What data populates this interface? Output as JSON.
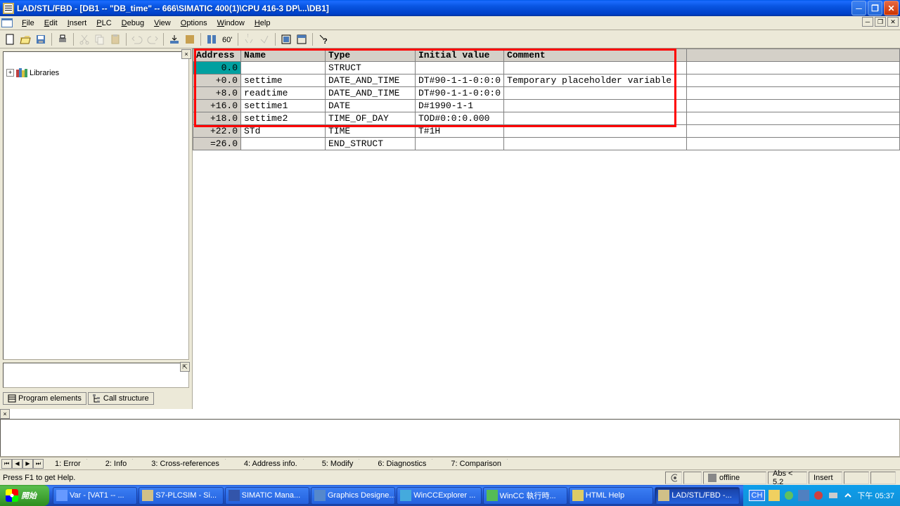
{
  "titlebar": {
    "text": "LAD/STL/FBD  - [DB1 -- \"DB_time\" -- 666\\SIMATIC 400(1)\\CPU 416-3 DP\\...\\DB1]"
  },
  "menu": {
    "items": [
      "File",
      "Edit",
      "Insert",
      "PLC",
      "Debug",
      "View",
      "Options",
      "Window",
      "Help"
    ]
  },
  "tree": {
    "root": "Libraries"
  },
  "pane_tabs": {
    "a": "Program elements",
    "b": "Call structure"
  },
  "table": {
    "headers": {
      "address": "Address",
      "name": "Name",
      "type": "Type",
      "initial": "Initial value",
      "comment": "Comment"
    },
    "rows": [
      {
        "addr": "0.0",
        "name": "",
        "type": "STRUCT",
        "init": "",
        "comment": "",
        "sel": true,
        "hl": true
      },
      {
        "addr": "+0.0",
        "name": "settime",
        "type": "DATE_AND_TIME",
        "init": "DT#90-1-1-0:0:0",
        "comment": "Temporary placeholder variable",
        "hl": true
      },
      {
        "addr": "+8.0",
        "name": "readtime",
        "type": "DATE_AND_TIME",
        "init": "DT#90-1-1-0:0:0",
        "comment": "",
        "hl": true
      },
      {
        "addr": "+16.0",
        "name": "settime1",
        "type": "DATE",
        "init": "D#1990-1-1",
        "comment": "",
        "hl": true
      },
      {
        "addr": "+18.0",
        "name": "settime2",
        "type": "TIME_OF_DAY",
        "init": "TOD#0:0:0.000",
        "comment": "",
        "hl": true
      },
      {
        "addr": "+22.0",
        "name": "STd",
        "type": "TIME",
        "init": "T#1H",
        "comment": "",
        "hl": false
      },
      {
        "addr": "=26.0",
        "name": "",
        "type": "END_STRUCT",
        "init": "",
        "comment": "",
        "hl": false
      }
    ]
  },
  "msg_tabs": [
    "1: Error",
    "2: Info",
    "3: Cross-references",
    "4: Address info.",
    "5: Modify",
    "6: Diagnostics",
    "7: Comparison"
  ],
  "status": {
    "help": "Press F1 to get Help.",
    "offline": "offline",
    "abs": "Abs < 5.2",
    "insert": "Insert"
  },
  "taskbar": {
    "start": "開始",
    "items": [
      {
        "label": "Var - [VAT1 -- ...",
        "color": "#6699ff"
      },
      {
        "label": "S7-PLCSIM - Si...",
        "color": "#d0c088"
      },
      {
        "label": "SIMATIC Mana...",
        "color": "#3355aa"
      },
      {
        "label": "Graphics Designe...",
        "color": "#5588cc"
      },
      {
        "label": "WinCCExplorer ...",
        "color": "#44aadd"
      },
      {
        "label": "WinCC 執行時...",
        "color": "#55bb55"
      },
      {
        "label": "HTML Help",
        "color": "#ddcc66"
      },
      {
        "label": "LAD/STL/FBD -...",
        "color": "#d0c088",
        "active": true
      }
    ],
    "lang": "CH",
    "time": "下午 05:37"
  },
  "colors": {
    "red_highlight": "#ff0000"
  }
}
